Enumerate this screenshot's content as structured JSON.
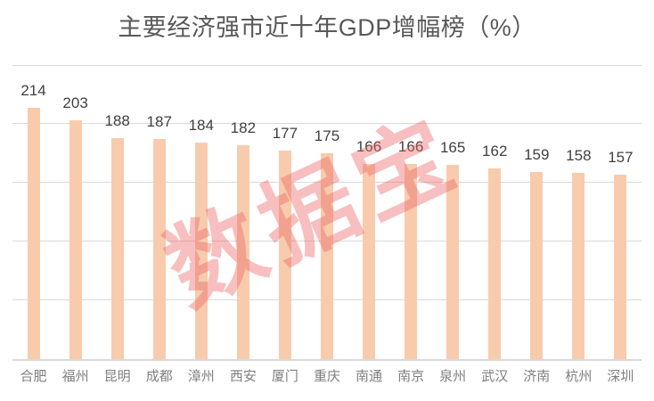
{
  "chart_data": {
    "type": "bar",
    "title": "主要经济强市近十年GDP增幅榜（%）",
    "categories": [
      "合肥",
      "福州",
      "昆明",
      "成都",
      "漳州",
      "西安",
      "厦门",
      "重庆",
      "南通",
      "南京",
      "泉州",
      "武汉",
      "济南",
      "杭州",
      "深圳"
    ],
    "values": [
      214,
      203,
      188,
      187,
      184,
      182,
      177,
      175,
      166,
      166,
      165,
      162,
      159,
      158,
      157
    ],
    "xlabel": "",
    "ylabel": "",
    "ylim": [
      0,
      250
    ],
    "gridline_step": 50,
    "grid": "horizontal",
    "legend_position": "none",
    "value_labels": "above-bars",
    "bar_color": "#F8CBAD",
    "gridline_color": "#D9D9D9",
    "value_label_color": "#404040",
    "axis_label_color": "#7F7F7F",
    "title_color": "#595959"
  },
  "watermark": {
    "text": "数据宝",
    "color": "rgba(237, 102, 102, 0.42)"
  }
}
